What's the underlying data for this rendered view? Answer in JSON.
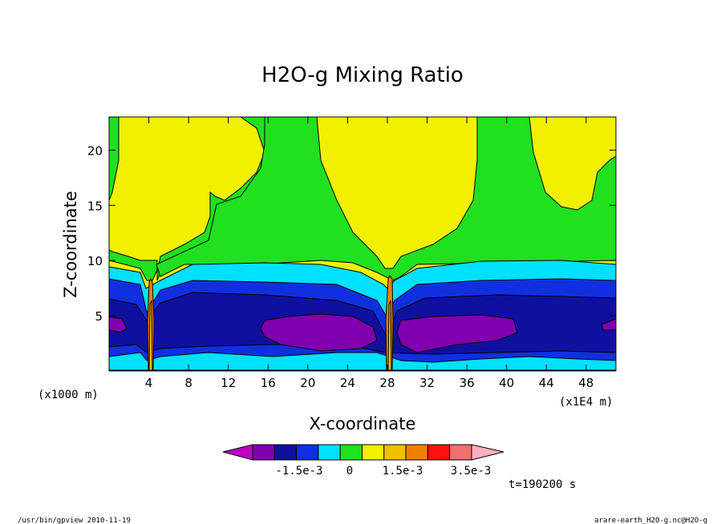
{
  "chart_data": {
    "type": "heatmap",
    "title": "H2O-g Mixing Ratio",
    "xlabel": "X-coordinate",
    "ylabel": "Z-coordinate",
    "x_scale_note": "(x1E4 m)",
    "y_scale_note": "(x1000 m)",
    "x_ticks": [
      "4",
      "8",
      "12",
      "16",
      "20",
      "24",
      "28",
      "32",
      "36",
      "40",
      "44",
      "48"
    ],
    "y_ticks": [
      "5",
      "10",
      "15",
      "20"
    ],
    "xlim": [
      0,
      51
    ],
    "ylim": [
      0,
      23
    ],
    "legend": {
      "colors": [
        "#c000c0",
        "#8000b0",
        "#1010a0",
        "#1030e0",
        "#00e0ff",
        "#20e020",
        "#f0f000",
        "#f0c000",
        "#f08000",
        "#ff1010",
        "#f07070",
        "#ffb0c0"
      ],
      "labels": [
        "-1.5e-3",
        "0",
        "1.5e-3",
        "3.5e-3"
      ]
    },
    "time_label": "t=190200 s",
    "series": [
      {
        "name": "contours",
        "values": []
      }
    ]
  },
  "footer": {
    "left": "/usr/bin/gpview  2010-11-19",
    "right": "arare-earth_H2O-g.nc@H2O-g"
  }
}
